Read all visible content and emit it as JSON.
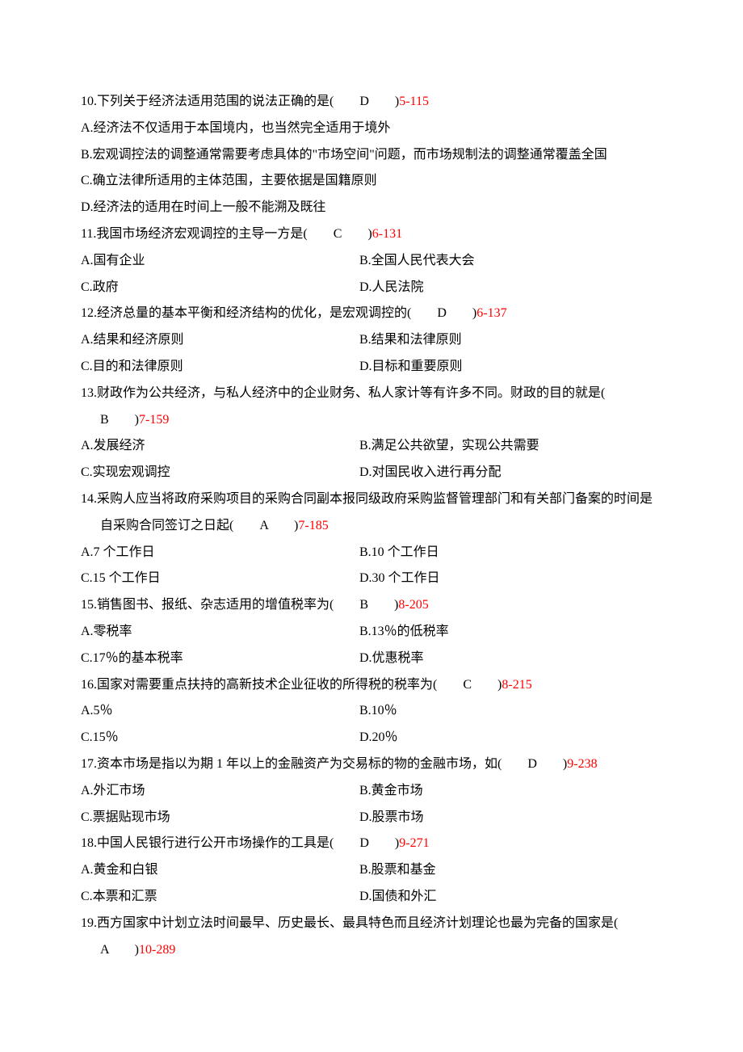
{
  "questions": [
    {
      "num": "10",
      "stem": ".下列关于经济法适用范围的说法正确的是(　　",
      "answer": "D",
      "after": "　　)",
      "ref": "5-115",
      "layout": "full",
      "options": [
        "A.经济法不仅适用于本国境内，也当然完全适用于境外",
        "B.宏观调控法的调整通常需要考虑具体的\"市场空间\"问题，而市场规制法的调整通常覆盖全国",
        "C.确立法律所适用的主体范围，主要依据是国籍原则",
        "D.经济法的适用在时间上一般不能溯及既往"
      ],
      "optionWrap": [
        false,
        true,
        false,
        false
      ]
    },
    {
      "num": "11",
      "stem": ".我国市场经济宏观调控的主导一方是(　　",
      "answer": "C",
      "after": "　　)",
      "ref": "6-131",
      "layout": "two-col",
      "optionsA": [
        "A.国有企业",
        "C.政府"
      ],
      "optionsB": [
        "B.全国人民代表大会",
        "D.人民法院"
      ]
    },
    {
      "num": "12",
      "stem": ".经济总量的基本平衡和经济结构的优化，是宏观调控的(　　",
      "answer": "D",
      "after": "　　)",
      "ref": "6-137",
      "layout": "two-col",
      "optionsA": [
        "A.结果和经济原则",
        "C.目的和法律原则"
      ],
      "optionsB": [
        "B.结果和法律原则",
        "D.目标和重要原则"
      ]
    },
    {
      "num": "13",
      "stem": ".财政作为公共经济，与私人经济中的企业财务、私人家计等有许多不同。财政的目的就是(　　",
      "answer": "B",
      "after": "　　)",
      "ref": "7-159",
      "layout": "two-col",
      "stemWrap": true,
      "optionsA": [
        "A.发展经济",
        "C.实现宏观调控"
      ],
      "optionsB": [
        "B.满足公共欲望，实现公共需要",
        "D.对国民收入进行再分配"
      ]
    },
    {
      "num": "14",
      "stem": ".采购人应当将政府采购项目的采购合同副本报同级政府采购监督管理部门和有关部门备案的时间是自采购合同签订之日起(　　",
      "answer": "A",
      "after": "　　)",
      "ref": "7-185",
      "layout": "two-col",
      "stemWrap": true,
      "optionsA": [
        "A.7 个工作日",
        "C.15 个工作日"
      ],
      "optionsB": [
        "B.10 个工作日",
        "D.30 个工作日"
      ]
    },
    {
      "num": "15",
      "stem": ".销售图书、报纸、杂志适用的增值税率为(　　",
      "answer": "B",
      "after": "　　)",
      "ref": "8-205",
      "layout": "two-col",
      "optionsA": [
        "A.零税率",
        "C.17％的基本税率"
      ],
      "optionsB": [
        "B.13％的低税率",
        "D.优惠税率"
      ]
    },
    {
      "num": "16",
      "stem": ".国家对需要重点扶持的高新技术企业征收的所得税的税率为(　　",
      "answer": "C",
      "after": "　　)",
      "ref": "8-215",
      "layout": "two-col",
      "optionsA": [
        "A.5％",
        "C.15％"
      ],
      "optionsB": [
        "B.10％",
        "D.20％"
      ]
    },
    {
      "num": "17",
      "stem": ".资本市场是指以为期 1 年以上的金融资产为交易标的物的金融市场，如(　　",
      "answer": "D",
      "after": "　　)",
      "ref": "9-238",
      "layout": "two-col",
      "optionsA": [
        "A.外汇市场",
        "C.票据贴现市场"
      ],
      "optionsB": [
        "B.黄金市场",
        "D.股票市场"
      ]
    },
    {
      "num": "18",
      "stem": ".中国人民银行进行公开市场操作的工具是(　　",
      "answer": "D",
      "after": "　　)",
      "ref": "9-271",
      "layout": "two-col",
      "optionsA": [
        "A.黄金和白银",
        "C.本票和汇票"
      ],
      "optionsB": [
        "B.股票和基金",
        "D.国债和外汇"
      ]
    },
    {
      "num": "19",
      "stem": ".西方国家中计划立法时间最早、历史最长、最具特色而且经济计划理论也最为完备的国家是(　　",
      "answer": "A",
      "after": "　　)",
      "ref": "10-289",
      "layout": "none",
      "stemWrap": true
    }
  ]
}
